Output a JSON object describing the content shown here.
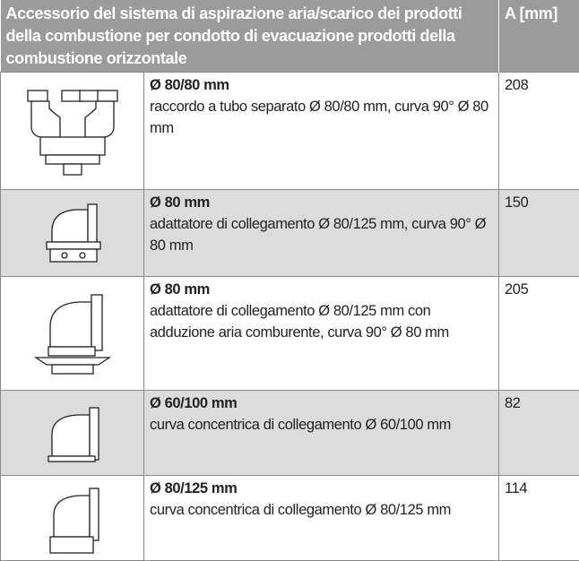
{
  "header": {
    "title": "Accessorio del sistema di aspirazione aria/scarico dei prodotti della combustione per condotto di evacuazione prodotti della combustione orizzontale",
    "value_column": "A [mm]"
  },
  "rows": [
    {
      "heading": "Ø 80/80 mm",
      "description": "raccordo a tubo separato Ø 80/80 mm, curva 90° Ø 80 mm",
      "value": 208
    },
    {
      "heading": "Ø 80 mm",
      "description": "adattatore di collegamento Ø 80/125 mm, curva 90° Ø 80 mm",
      "value": 150
    },
    {
      "heading": "Ø 80 mm",
      "description": "adattatore di collegamento Ø 80/125 mm con adduzione aria comburente, curva 90° Ø 80 mm",
      "value": 205
    },
    {
      "heading": "Ø 60/100 mm",
      "description": "curva concentrica di collegamento Ø 60/100 mm",
      "value": 82
    },
    {
      "heading": "Ø 80/125 mm",
      "description": "curva concentrica di collegamento Ø 80/125 mm",
      "value": 114
    }
  ]
}
